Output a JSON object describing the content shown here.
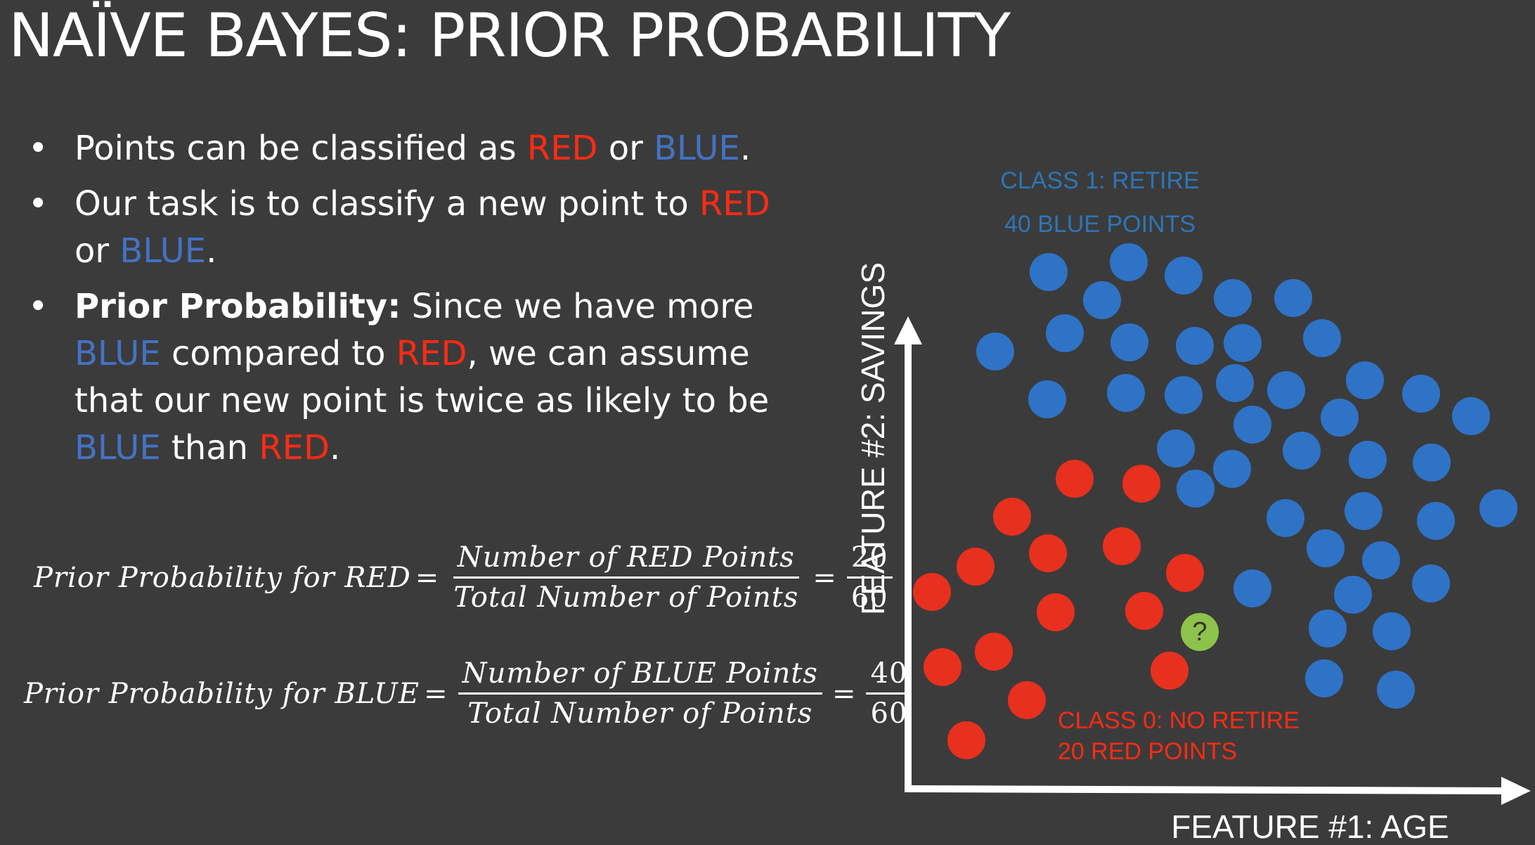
{
  "title": "NAÏVE BAYES: PRIOR PROBABILITY",
  "bullets": [
    {
      "segments": [
        {
          "text": "Points can be classified as ",
          "style": "plain"
        },
        {
          "text": "RED",
          "style": "red"
        },
        {
          "text": " or ",
          "style": "plain"
        },
        {
          "text": "BLUE",
          "style": "blue"
        },
        {
          "text": ".",
          "style": "plain"
        }
      ]
    },
    {
      "segments": [
        {
          "text": "Our task is to classify a new point to ",
          "style": "plain"
        },
        {
          "text": "RED",
          "style": "red"
        },
        {
          "text": " or ",
          "style": "plain"
        },
        {
          "text": "BLUE",
          "style": "blue"
        },
        {
          "text": ".",
          "style": "plain"
        }
      ]
    },
    {
      "segments": [
        {
          "text": "Prior Probability:",
          "style": "bold"
        },
        {
          "text": " Since we have more ",
          "style": "plain"
        },
        {
          "text": "BLUE",
          "style": "blue"
        },
        {
          "text": " compared to ",
          "style": "plain"
        },
        {
          "text": "RED",
          "style": "red"
        },
        {
          "text": ", we can assume that our new point is twice as likely to be ",
          "style": "plain"
        },
        {
          "text": "BLUE",
          "style": "blue"
        },
        {
          "text": " than ",
          "style": "plain"
        },
        {
          "text": "RED",
          "style": "red"
        },
        {
          "text": ".",
          "style": "plain"
        }
      ]
    }
  ],
  "formulas": {
    "red": {
      "label": "Prior Probability for RED",
      "numerator": "Number of RED Points",
      "denominator": "Total Number of Points",
      "value_num": "20",
      "value_den": "60"
    },
    "blue": {
      "label": "Prior Probability for BLUE",
      "numerator": "Number of BLUE Points",
      "denominator": "Total Number of Points",
      "value_num": "40",
      "value_den": "60"
    }
  },
  "diagram": {
    "y_axis_label": "FEATURE #2: SAVINGS",
    "x_axis_label": "FEATURE #1: AGE",
    "class1_line1": "CLASS 1: RETIRE",
    "class1_line2": "40 BLUE POINTS",
    "class0_line1": "CLASS 0: NO RETIRE",
    "class0_line2": "20 RED POINTS",
    "new_point_label": "?",
    "colors": {
      "background": "#3b3b3b",
      "text": "#ffffff",
      "red": "#ff2b14",
      "red_point": "#e8301e",
      "blue": "#4472c4",
      "blue_point": "#2f73c7",
      "class1_label": "#2e75b6",
      "class0_label": "#ff2b14",
      "new_point": "#8dc34a"
    }
  }
}
